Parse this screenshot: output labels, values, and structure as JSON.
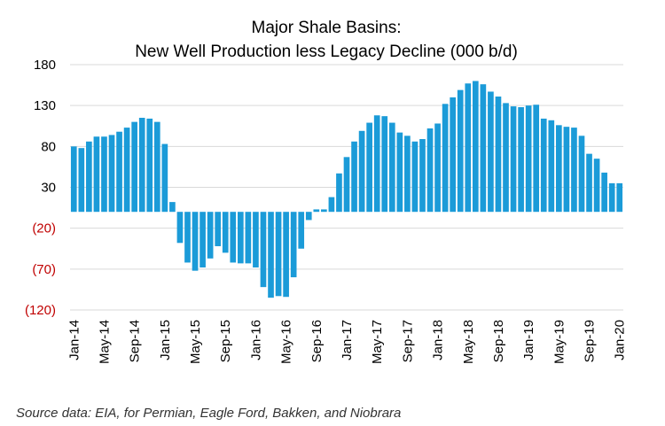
{
  "chart_data": {
    "type": "bar",
    "title": "Major Shale Basins:",
    "subtitle": "New Well Production less Legacy Decline (000 b/d)",
    "xlabel": "",
    "ylabel": "",
    "ylim": [
      -120,
      180
    ],
    "yticks": [
      {
        "value": 180,
        "label": "180"
      },
      {
        "value": 130,
        "label": "130"
      },
      {
        "value": 80,
        "label": "80"
      },
      {
        "value": 30,
        "label": "30"
      },
      {
        "value": -20,
        "label": "(20)"
      },
      {
        "value": -70,
        "label": "(70)"
      },
      {
        "value": -120,
        "label": "(120)"
      }
    ],
    "xtick_labels": [
      "Jan-14",
      "May-14",
      "Sep-14",
      "Jan-15",
      "May-15",
      "Sep-15",
      "Jan-16",
      "May-16",
      "Sep-16",
      "Jan-17",
      "May-17",
      "Sep-17",
      "Jan-18",
      "May-18",
      "Sep-18",
      "Jan-19",
      "May-19",
      "Sep-19",
      "Jan-20"
    ],
    "xtick_every": 4,
    "grid": true,
    "legend": "none",
    "categories": [
      "Jan-14",
      "Feb-14",
      "Mar-14",
      "Apr-14",
      "May-14",
      "Jun-14",
      "Jul-14",
      "Aug-14",
      "Sep-14",
      "Oct-14",
      "Nov-14",
      "Dec-14",
      "Jan-15",
      "Feb-15",
      "Mar-15",
      "Apr-15",
      "May-15",
      "Jun-15",
      "Jul-15",
      "Aug-15",
      "Sep-15",
      "Oct-15",
      "Nov-15",
      "Dec-15",
      "Jan-16",
      "Feb-16",
      "Mar-16",
      "Apr-16",
      "May-16",
      "Jun-16",
      "Jul-16",
      "Aug-16",
      "Sep-16",
      "Oct-16",
      "Nov-16",
      "Dec-16",
      "Jan-17",
      "Feb-17",
      "Mar-17",
      "Apr-17",
      "May-17",
      "Jun-17",
      "Jul-17",
      "Aug-17",
      "Sep-17",
      "Oct-17",
      "Nov-17",
      "Dec-17",
      "Jan-18",
      "Feb-18",
      "Mar-18",
      "Apr-18",
      "May-18",
      "Jun-18",
      "Jul-18",
      "Aug-18",
      "Sep-18",
      "Oct-18",
      "Nov-18",
      "Dec-18",
      "Jan-19",
      "Feb-19",
      "Mar-19",
      "Apr-19",
      "May-19",
      "Jun-19",
      "Jul-19",
      "Aug-19",
      "Sep-19",
      "Oct-19",
      "Nov-19",
      "Dec-19",
      "Jan-20"
    ],
    "values": [
      80,
      78,
      86,
      92,
      92,
      94,
      98,
      103,
      110,
      115,
      114,
      110,
      83,
      12,
      -38,
      -62,
      -72,
      -68,
      -57,
      -42,
      -50,
      -62,
      -63,
      -63,
      -68,
      -92,
      -105,
      -103,
      -104,
      -80,
      -45,
      -10,
      3,
      3,
      18,
      47,
      67,
      86,
      99,
      109,
      118,
      117,
      109,
      97,
      93,
      86,
      89,
      102,
      108,
      132,
      140,
      149,
      157,
      160,
      156,
      147,
      141,
      133,
      129,
      128,
      130,
      131,
      114,
      112,
      106,
      104,
      103,
      93,
      71,
      65,
      48,
      35,
      35
    ],
    "colors": {
      "bar": "#1B9BD8",
      "grid": "#D9D9D9",
      "positive_tick": "#000000",
      "negative_tick": "#C00000"
    },
    "source_note": "Source data: EIA, for Permian, Eagle Ford, Bakken, and Niobrara"
  }
}
